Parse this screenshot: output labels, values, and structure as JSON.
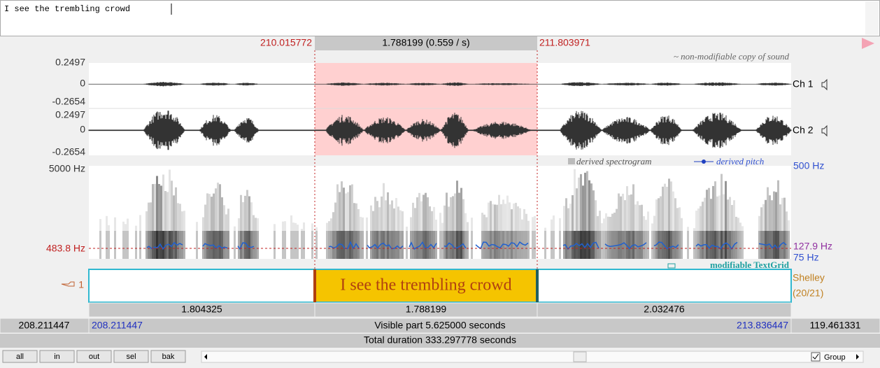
{
  "text_editor": {
    "text": "I see the trembling crowd"
  },
  "selection": {
    "start": "210.015772",
    "duration": "1.788199 (0.559 / s)",
    "end": "211.803971"
  },
  "sound": {
    "label": "~ non-modifiable copy of sound",
    "channels": [
      {
        "name": "Ch 1",
        "max": "0.2497",
        "zero": "0",
        "min": "-0.2654"
      },
      {
        "name": "Ch 2",
        "max": "0.2497",
        "zero": "0",
        "min": "-0.2654"
      }
    ]
  },
  "spectrogram": {
    "top": "5000 Hz",
    "cursor": "483.8 Hz",
    "legend_spectrogram": "derived spectrogram",
    "legend_pitch": "derived pitch",
    "pitch_top": "500 Hz",
    "pitch_cursor": "127.9 Hz",
    "pitch_bottom": "75 Hz"
  },
  "textgrid": {
    "label": "modifiable TextGrid",
    "tier_number": "1",
    "tier_name": "Shelley",
    "tier_count": "(20/21)",
    "selected_interval_text": "I see the trembling crowd",
    "interval_durations": [
      "1.804325",
      "1.788199",
      "2.032476"
    ]
  },
  "footer": {
    "window_start": "208.211447",
    "visible_start": "208.211447",
    "visible_part": "Visible part 5.625000 seconds",
    "visible_end": "213.836447",
    "window_end": "119.461331",
    "total_duration": "Total duration 333.297778 seconds"
  },
  "toolbar": {
    "buttons": [
      "all",
      "in",
      "out",
      "sel",
      "bak"
    ],
    "group": "Group"
  }
}
